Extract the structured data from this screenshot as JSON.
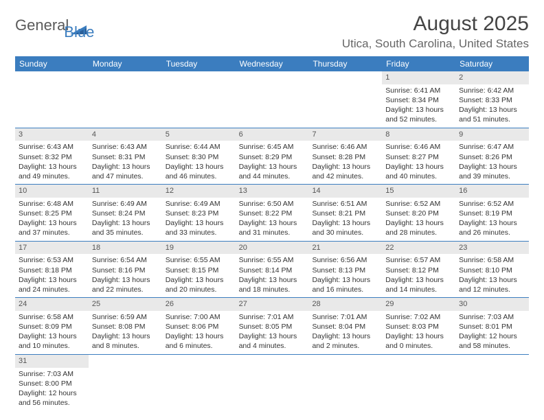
{
  "logo": {
    "general": "General",
    "blue": "Blue"
  },
  "header": {
    "month_title": "August 2025",
    "location": "Utica, South Carolina, United States"
  },
  "colors": {
    "header_bg": "#3b7dbf",
    "header_text": "#ffffff",
    "daynum_bg": "#e9e9e9",
    "week_border": "#3b7dbf"
  },
  "day_labels": [
    "Sunday",
    "Monday",
    "Tuesday",
    "Wednesday",
    "Thursday",
    "Friday",
    "Saturday"
  ],
  "weeks": [
    [
      null,
      null,
      null,
      null,
      null,
      {
        "n": "1",
        "sr": "Sunrise: 6:41 AM",
        "ss": "Sunset: 8:34 PM",
        "dl": "Daylight: 13 hours and 52 minutes."
      },
      {
        "n": "2",
        "sr": "Sunrise: 6:42 AM",
        "ss": "Sunset: 8:33 PM",
        "dl": "Daylight: 13 hours and 51 minutes."
      }
    ],
    [
      {
        "n": "3",
        "sr": "Sunrise: 6:43 AM",
        "ss": "Sunset: 8:32 PM",
        "dl": "Daylight: 13 hours and 49 minutes."
      },
      {
        "n": "4",
        "sr": "Sunrise: 6:43 AM",
        "ss": "Sunset: 8:31 PM",
        "dl": "Daylight: 13 hours and 47 minutes."
      },
      {
        "n": "5",
        "sr": "Sunrise: 6:44 AM",
        "ss": "Sunset: 8:30 PM",
        "dl": "Daylight: 13 hours and 46 minutes."
      },
      {
        "n": "6",
        "sr": "Sunrise: 6:45 AM",
        "ss": "Sunset: 8:29 PM",
        "dl": "Daylight: 13 hours and 44 minutes."
      },
      {
        "n": "7",
        "sr": "Sunrise: 6:46 AM",
        "ss": "Sunset: 8:28 PM",
        "dl": "Daylight: 13 hours and 42 minutes."
      },
      {
        "n": "8",
        "sr": "Sunrise: 6:46 AM",
        "ss": "Sunset: 8:27 PM",
        "dl": "Daylight: 13 hours and 40 minutes."
      },
      {
        "n": "9",
        "sr": "Sunrise: 6:47 AM",
        "ss": "Sunset: 8:26 PM",
        "dl": "Daylight: 13 hours and 39 minutes."
      }
    ],
    [
      {
        "n": "10",
        "sr": "Sunrise: 6:48 AM",
        "ss": "Sunset: 8:25 PM",
        "dl": "Daylight: 13 hours and 37 minutes."
      },
      {
        "n": "11",
        "sr": "Sunrise: 6:49 AM",
        "ss": "Sunset: 8:24 PM",
        "dl": "Daylight: 13 hours and 35 minutes."
      },
      {
        "n": "12",
        "sr": "Sunrise: 6:49 AM",
        "ss": "Sunset: 8:23 PM",
        "dl": "Daylight: 13 hours and 33 minutes."
      },
      {
        "n": "13",
        "sr": "Sunrise: 6:50 AM",
        "ss": "Sunset: 8:22 PM",
        "dl": "Daylight: 13 hours and 31 minutes."
      },
      {
        "n": "14",
        "sr": "Sunrise: 6:51 AM",
        "ss": "Sunset: 8:21 PM",
        "dl": "Daylight: 13 hours and 30 minutes."
      },
      {
        "n": "15",
        "sr": "Sunrise: 6:52 AM",
        "ss": "Sunset: 8:20 PM",
        "dl": "Daylight: 13 hours and 28 minutes."
      },
      {
        "n": "16",
        "sr": "Sunrise: 6:52 AM",
        "ss": "Sunset: 8:19 PM",
        "dl": "Daylight: 13 hours and 26 minutes."
      }
    ],
    [
      {
        "n": "17",
        "sr": "Sunrise: 6:53 AM",
        "ss": "Sunset: 8:18 PM",
        "dl": "Daylight: 13 hours and 24 minutes."
      },
      {
        "n": "18",
        "sr": "Sunrise: 6:54 AM",
        "ss": "Sunset: 8:16 PM",
        "dl": "Daylight: 13 hours and 22 minutes."
      },
      {
        "n": "19",
        "sr": "Sunrise: 6:55 AM",
        "ss": "Sunset: 8:15 PM",
        "dl": "Daylight: 13 hours and 20 minutes."
      },
      {
        "n": "20",
        "sr": "Sunrise: 6:55 AM",
        "ss": "Sunset: 8:14 PM",
        "dl": "Daylight: 13 hours and 18 minutes."
      },
      {
        "n": "21",
        "sr": "Sunrise: 6:56 AM",
        "ss": "Sunset: 8:13 PM",
        "dl": "Daylight: 13 hours and 16 minutes."
      },
      {
        "n": "22",
        "sr": "Sunrise: 6:57 AM",
        "ss": "Sunset: 8:12 PM",
        "dl": "Daylight: 13 hours and 14 minutes."
      },
      {
        "n": "23",
        "sr": "Sunrise: 6:58 AM",
        "ss": "Sunset: 8:10 PM",
        "dl": "Daylight: 13 hours and 12 minutes."
      }
    ],
    [
      {
        "n": "24",
        "sr": "Sunrise: 6:58 AM",
        "ss": "Sunset: 8:09 PM",
        "dl": "Daylight: 13 hours and 10 minutes."
      },
      {
        "n": "25",
        "sr": "Sunrise: 6:59 AM",
        "ss": "Sunset: 8:08 PM",
        "dl": "Daylight: 13 hours and 8 minutes."
      },
      {
        "n": "26",
        "sr": "Sunrise: 7:00 AM",
        "ss": "Sunset: 8:06 PM",
        "dl": "Daylight: 13 hours and 6 minutes."
      },
      {
        "n": "27",
        "sr": "Sunrise: 7:01 AM",
        "ss": "Sunset: 8:05 PM",
        "dl": "Daylight: 13 hours and 4 minutes."
      },
      {
        "n": "28",
        "sr": "Sunrise: 7:01 AM",
        "ss": "Sunset: 8:04 PM",
        "dl": "Daylight: 13 hours and 2 minutes."
      },
      {
        "n": "29",
        "sr": "Sunrise: 7:02 AM",
        "ss": "Sunset: 8:03 PM",
        "dl": "Daylight: 13 hours and 0 minutes."
      },
      {
        "n": "30",
        "sr": "Sunrise: 7:03 AM",
        "ss": "Sunset: 8:01 PM",
        "dl": "Daylight: 12 hours and 58 minutes."
      }
    ],
    [
      {
        "n": "31",
        "sr": "Sunrise: 7:03 AM",
        "ss": "Sunset: 8:00 PM",
        "dl": "Daylight: 12 hours and 56 minutes."
      },
      null,
      null,
      null,
      null,
      null,
      null
    ]
  ]
}
